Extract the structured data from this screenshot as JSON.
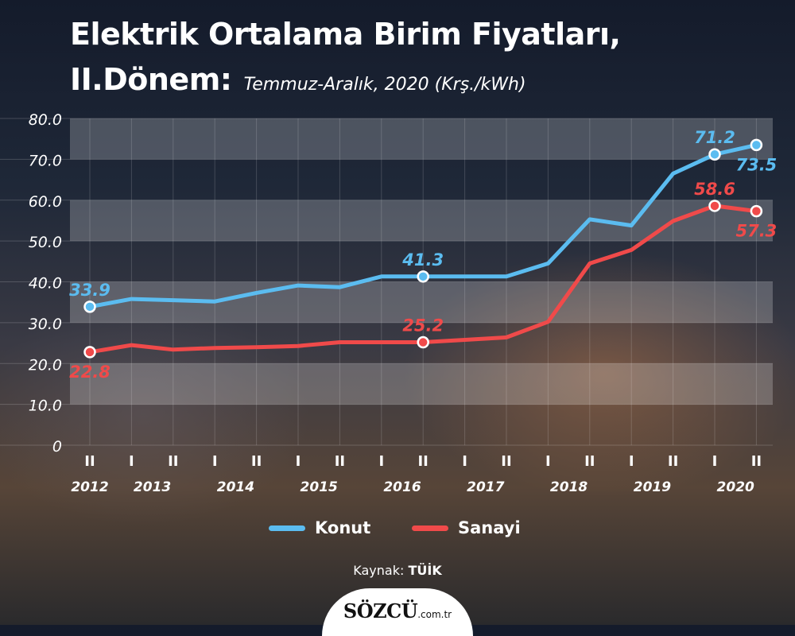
{
  "title": {
    "line1": "Elektrik Ortalama Birim Fiyatları,",
    "line2": "II.Dönem:",
    "subtitle": "Temmuz-Aralık, 2020 (Krş./kWh)"
  },
  "colors": {
    "konut": "#5bbcf0",
    "sanayi": "#f04a4a",
    "label_dark": "#1f3040"
  },
  "chart_data": {
    "type": "line",
    "x": [
      "II",
      "I",
      "II",
      "I",
      "II",
      "I",
      "II",
      "I",
      "II",
      "I",
      "II",
      "I",
      "II",
      "I",
      "II",
      "I",
      "II"
    ],
    "year_labels": [
      {
        "label": "2012",
        "index": 0
      },
      {
        "label": "2013",
        "index": 1.5
      },
      {
        "label": "2014",
        "index": 3.5
      },
      {
        "label": "2015",
        "index": 5.5
      },
      {
        "label": "2016",
        "index": 7.5
      },
      {
        "label": "2017",
        "index": 9.5
      },
      {
        "label": "2018",
        "index": 11.5
      },
      {
        "label": "2019",
        "index": 13.5
      },
      {
        "label": "2020",
        "index": 15.5
      }
    ],
    "y_ticks": [
      "0",
      "10.0",
      "20.0",
      "30.0",
      "40.0",
      "50.0",
      "60.0",
      "70.0",
      "80.0"
    ],
    "ylim": [
      0,
      80
    ],
    "series": [
      {
        "name": "Konut",
        "color": "#5bbcf0",
        "values": [
          33.9,
          35.8,
          35.5,
          35.2,
          37.3,
          39.1,
          38.7,
          41.3,
          41.3,
          41.3,
          41.3,
          44.5,
          55.3,
          53.8,
          66.5,
          71.2,
          73.5
        ],
        "labels": [
          {
            "index": 0,
            "text": "33.9",
            "pos": "above"
          },
          {
            "index": 8,
            "text": "41.3",
            "pos": "above"
          },
          {
            "index": 15,
            "text": "71.2",
            "pos": "above"
          },
          {
            "index": 16,
            "text": "73.5",
            "pos": "below"
          }
        ]
      },
      {
        "name": "Sanayi",
        "color": "#f04a4a",
        "values": [
          22.8,
          24.5,
          23.4,
          23.8,
          24.0,
          24.3,
          25.2,
          25.2,
          25.2,
          25.8,
          26.4,
          30.2,
          44.5,
          47.8,
          54.9,
          58.6,
          57.3
        ],
        "labels": [
          {
            "index": 0,
            "text": "22.8",
            "pos": "below"
          },
          {
            "index": 8,
            "text": "25.2",
            "pos": "above"
          },
          {
            "index": 15,
            "text": "58.6",
            "pos": "above"
          },
          {
            "index": 16,
            "text": "57.3",
            "pos": "below"
          }
        ]
      }
    ],
    "legend": [
      "Konut",
      "Sanayi"
    ],
    "grid": true
  },
  "source": {
    "prefix": "Kaynak:",
    "name": "TÜİK"
  },
  "logo": {
    "brand": "SÖZCÜ",
    "domain": ".com.tr"
  }
}
